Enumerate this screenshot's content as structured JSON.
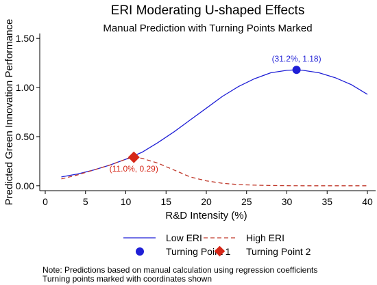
{
  "chart_data": {
    "type": "line",
    "title": "ERI Moderating U-shaped Effects",
    "subtitle": "Manual Prediction with Turning Points Marked",
    "xlabel": "R&D Intensity (%)",
    "ylabel": "Predicted Green Innovation Performance",
    "xlim": [
      0,
      40
    ],
    "ylim": [
      -0.05,
      1.55
    ],
    "xticks": [
      0,
      5,
      10,
      15,
      20,
      25,
      30,
      35,
      40
    ],
    "yticks": [
      0,
      0.5,
      1,
      1.5
    ],
    "ytick_labels": [
      "0.00",
      "0.50",
      "1.00",
      "1.50"
    ],
    "grid": false,
    "series": [
      {
        "name": "Low ERI",
        "color": "#1f1fd6",
        "style": "solid",
        "x": [
          2,
          4,
          6,
          8,
          10,
          12,
          14,
          16,
          18,
          20,
          22,
          24,
          26,
          28,
          30,
          31.2,
          32,
          34,
          36,
          38,
          40
        ],
        "y": [
          0.09,
          0.12,
          0.16,
          0.21,
          0.27,
          0.34,
          0.44,
          0.55,
          0.67,
          0.79,
          0.91,
          1.01,
          1.09,
          1.15,
          1.175,
          1.18,
          1.175,
          1.15,
          1.1,
          1.03,
          0.93
        ]
      },
      {
        "name": "High ERI",
        "color": "#c0392b",
        "style": "dashed",
        "x": [
          2,
          4,
          6,
          8,
          10,
          11,
          12,
          14,
          16,
          18,
          20,
          22,
          24,
          26,
          28,
          30,
          32,
          34,
          36,
          38,
          40
        ],
        "y": [
          0.07,
          0.11,
          0.16,
          0.21,
          0.27,
          0.29,
          0.28,
          0.23,
          0.16,
          0.09,
          0.05,
          0.025,
          0.012,
          0.006,
          0.003,
          0.001,
          0,
          0,
          0,
          0,
          0
        ]
      }
    ],
    "turning_points": [
      {
        "name": "Turning Point 1",
        "x": 31.2,
        "y": 1.18,
        "label": "(31.2%, 1.18)",
        "color": "#1f1fd6",
        "marker": "circle"
      },
      {
        "name": "Turning Point 2",
        "x": 11.0,
        "y": 0.29,
        "label": "(11.0%, 0.29)",
        "color": "#d62718",
        "marker": "diamond"
      }
    ],
    "legend_position": "bottom"
  },
  "note": {
    "line1": "Note: Predictions based on manual calculation using regression coefficients",
    "line2": "Turning points marked with coordinates shown"
  }
}
